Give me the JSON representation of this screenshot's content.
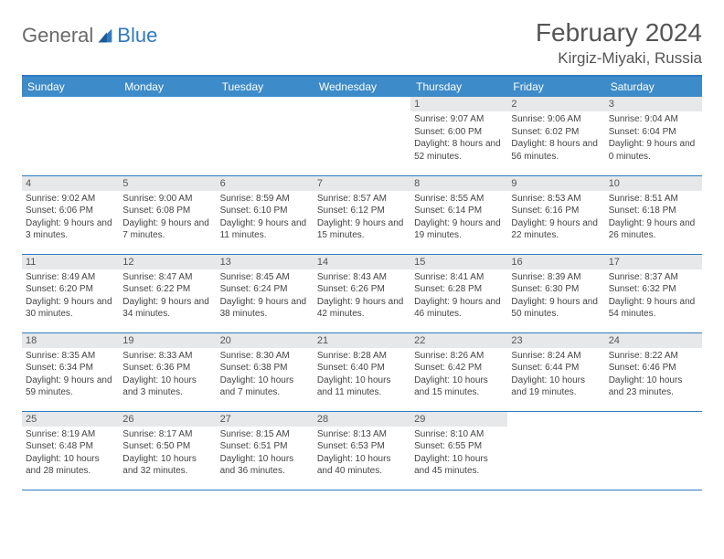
{
  "brand": {
    "general": "General",
    "blue": "Blue"
  },
  "title": "February 2024",
  "location": "Kirgiz-Miyaki, Russia",
  "colors": {
    "header_bg": "#3d8bc9",
    "header_border": "#2f7bbf",
    "daynum_bg": "#e6e8ea",
    "text": "#444444",
    "title_text": "#555555"
  },
  "weekdays": [
    "Sunday",
    "Monday",
    "Tuesday",
    "Wednesday",
    "Thursday",
    "Friday",
    "Saturday"
  ],
  "weeks": [
    [
      null,
      null,
      null,
      null,
      {
        "n": "1",
        "sr": "Sunrise: 9:07 AM",
        "ss": "Sunset: 6:00 PM",
        "dl": "Daylight: 8 hours and 52 minutes."
      },
      {
        "n": "2",
        "sr": "Sunrise: 9:06 AM",
        "ss": "Sunset: 6:02 PM",
        "dl": "Daylight: 8 hours and 56 minutes."
      },
      {
        "n": "3",
        "sr": "Sunrise: 9:04 AM",
        "ss": "Sunset: 6:04 PM",
        "dl": "Daylight: 9 hours and 0 minutes."
      }
    ],
    [
      {
        "n": "4",
        "sr": "Sunrise: 9:02 AM",
        "ss": "Sunset: 6:06 PM",
        "dl": "Daylight: 9 hours and 3 minutes."
      },
      {
        "n": "5",
        "sr": "Sunrise: 9:00 AM",
        "ss": "Sunset: 6:08 PM",
        "dl": "Daylight: 9 hours and 7 minutes."
      },
      {
        "n": "6",
        "sr": "Sunrise: 8:59 AM",
        "ss": "Sunset: 6:10 PM",
        "dl": "Daylight: 9 hours and 11 minutes."
      },
      {
        "n": "7",
        "sr": "Sunrise: 8:57 AM",
        "ss": "Sunset: 6:12 PM",
        "dl": "Daylight: 9 hours and 15 minutes."
      },
      {
        "n": "8",
        "sr": "Sunrise: 8:55 AM",
        "ss": "Sunset: 6:14 PM",
        "dl": "Daylight: 9 hours and 19 minutes."
      },
      {
        "n": "9",
        "sr": "Sunrise: 8:53 AM",
        "ss": "Sunset: 6:16 PM",
        "dl": "Daylight: 9 hours and 22 minutes."
      },
      {
        "n": "10",
        "sr": "Sunrise: 8:51 AM",
        "ss": "Sunset: 6:18 PM",
        "dl": "Daylight: 9 hours and 26 minutes."
      }
    ],
    [
      {
        "n": "11",
        "sr": "Sunrise: 8:49 AM",
        "ss": "Sunset: 6:20 PM",
        "dl": "Daylight: 9 hours and 30 minutes."
      },
      {
        "n": "12",
        "sr": "Sunrise: 8:47 AM",
        "ss": "Sunset: 6:22 PM",
        "dl": "Daylight: 9 hours and 34 minutes."
      },
      {
        "n": "13",
        "sr": "Sunrise: 8:45 AM",
        "ss": "Sunset: 6:24 PM",
        "dl": "Daylight: 9 hours and 38 minutes."
      },
      {
        "n": "14",
        "sr": "Sunrise: 8:43 AM",
        "ss": "Sunset: 6:26 PM",
        "dl": "Daylight: 9 hours and 42 minutes."
      },
      {
        "n": "15",
        "sr": "Sunrise: 8:41 AM",
        "ss": "Sunset: 6:28 PM",
        "dl": "Daylight: 9 hours and 46 minutes."
      },
      {
        "n": "16",
        "sr": "Sunrise: 8:39 AM",
        "ss": "Sunset: 6:30 PM",
        "dl": "Daylight: 9 hours and 50 minutes."
      },
      {
        "n": "17",
        "sr": "Sunrise: 8:37 AM",
        "ss": "Sunset: 6:32 PM",
        "dl": "Daylight: 9 hours and 54 minutes."
      }
    ],
    [
      {
        "n": "18",
        "sr": "Sunrise: 8:35 AM",
        "ss": "Sunset: 6:34 PM",
        "dl": "Daylight: 9 hours and 59 minutes."
      },
      {
        "n": "19",
        "sr": "Sunrise: 8:33 AM",
        "ss": "Sunset: 6:36 PM",
        "dl": "Daylight: 10 hours and 3 minutes."
      },
      {
        "n": "20",
        "sr": "Sunrise: 8:30 AM",
        "ss": "Sunset: 6:38 PM",
        "dl": "Daylight: 10 hours and 7 minutes."
      },
      {
        "n": "21",
        "sr": "Sunrise: 8:28 AM",
        "ss": "Sunset: 6:40 PM",
        "dl": "Daylight: 10 hours and 11 minutes."
      },
      {
        "n": "22",
        "sr": "Sunrise: 8:26 AM",
        "ss": "Sunset: 6:42 PM",
        "dl": "Daylight: 10 hours and 15 minutes."
      },
      {
        "n": "23",
        "sr": "Sunrise: 8:24 AM",
        "ss": "Sunset: 6:44 PM",
        "dl": "Daylight: 10 hours and 19 minutes."
      },
      {
        "n": "24",
        "sr": "Sunrise: 8:22 AM",
        "ss": "Sunset: 6:46 PM",
        "dl": "Daylight: 10 hours and 23 minutes."
      }
    ],
    [
      {
        "n": "25",
        "sr": "Sunrise: 8:19 AM",
        "ss": "Sunset: 6:48 PM",
        "dl": "Daylight: 10 hours and 28 minutes."
      },
      {
        "n": "26",
        "sr": "Sunrise: 8:17 AM",
        "ss": "Sunset: 6:50 PM",
        "dl": "Daylight: 10 hours and 32 minutes."
      },
      {
        "n": "27",
        "sr": "Sunrise: 8:15 AM",
        "ss": "Sunset: 6:51 PM",
        "dl": "Daylight: 10 hours and 36 minutes."
      },
      {
        "n": "28",
        "sr": "Sunrise: 8:13 AM",
        "ss": "Sunset: 6:53 PM",
        "dl": "Daylight: 10 hours and 40 minutes."
      },
      {
        "n": "29",
        "sr": "Sunrise: 8:10 AM",
        "ss": "Sunset: 6:55 PM",
        "dl": "Daylight: 10 hours and 45 minutes."
      },
      null,
      null
    ]
  ]
}
